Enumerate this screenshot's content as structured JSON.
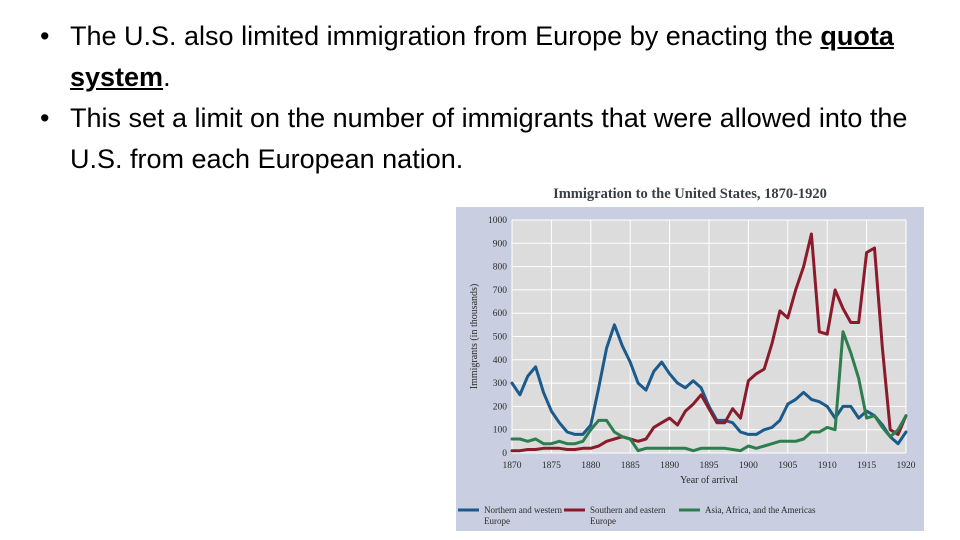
{
  "slide": {
    "bullets": [
      {
        "bullet_char": "•",
        "pre": "The U.S. also limited immigration from Europe by enacting the ",
        "keyword": "quota system",
        "post": "."
      },
      {
        "bullet_char": "•",
        "pre": "This set a limit on the number of immigrants that were allowed into the U.S. from each European nation.",
        "keyword": "",
        "post": ""
      }
    ]
  },
  "chart_data": {
    "type": "line",
    "title": "Immigration to the United States, 1870-1920",
    "xlabel": "Year of arrival",
    "ylabel": "Immigrants (in thousands)",
    "xlim": [
      1870,
      1920
    ],
    "ylim": [
      0,
      1000
    ],
    "xticks": [
      1870,
      1875,
      1880,
      1885,
      1890,
      1895,
      1900,
      1905,
      1910,
      1915,
      1920
    ],
    "yticks": [
      0,
      100,
      200,
      300,
      400,
      500,
      600,
      700,
      800,
      900,
      1000
    ],
    "grid": true,
    "legend_position": "bottom",
    "background_color": "#dcdcdc",
    "frame_color": "#c9cfe0",
    "x": [
      1870,
      1871,
      1872,
      1873,
      1874,
      1875,
      1876,
      1877,
      1878,
      1879,
      1880,
      1881,
      1882,
      1883,
      1884,
      1885,
      1886,
      1887,
      1888,
      1889,
      1890,
      1891,
      1892,
      1893,
      1894,
      1895,
      1896,
      1897,
      1898,
      1899,
      1900,
      1901,
      1902,
      1903,
      1904,
      1905,
      1906,
      1907,
      1908,
      1909,
      1910,
      1911,
      1912,
      1913,
      1914,
      1915,
      1916,
      1917,
      1918,
      1919,
      1920
    ],
    "series": [
      {
        "name": "Northern and western Europe",
        "color": "#1c5a8c",
        "values": [
          300,
          250,
          330,
          370,
          260,
          180,
          130,
          90,
          80,
          80,
          120,
          280,
          450,
          550,
          460,
          390,
          300,
          270,
          350,
          390,
          340,
          300,
          280,
          310,
          280,
          200,
          140,
          140,
          130,
          90,
          80,
          80,
          100,
          110,
          140,
          210,
          230,
          260,
          230,
          220,
          200,
          150,
          200,
          200,
          150,
          180,
          160,
          120,
          70,
          40,
          90
        ]
      },
      {
        "name": "Southern and eastern Europe",
        "color": "#8b1a2b",
        "values": [
          10,
          10,
          15,
          15,
          20,
          20,
          20,
          15,
          15,
          20,
          20,
          30,
          50,
          60,
          70,
          60,
          50,
          60,
          110,
          130,
          150,
          120,
          180,
          210,
          250,
          190,
          130,
          130,
          190,
          150,
          310,
          340,
          360,
          470,
          610,
          580,
          700,
          800,
          940,
          520,
          510,
          700,
          620,
          560,
          560,
          860,
          880,
          450,
          100,
          80,
          160
        ]
      },
      {
        "name": "Asia, Africa, and the Americas",
        "color": "#2e7d4f",
        "values": [
          60,
          60,
          50,
          60,
          40,
          40,
          50,
          40,
          40,
          50,
          100,
          140,
          140,
          90,
          70,
          60,
          10,
          20,
          20,
          20,
          20,
          20,
          20,
          10,
          20,
          20,
          20,
          20,
          15,
          10,
          30,
          20,
          30,
          40,
          50,
          50,
          50,
          60,
          90,
          90,
          110,
          100,
          520,
          430,
          320,
          150,
          160,
          110,
          70,
          100,
          160
        ]
      }
    ]
  }
}
